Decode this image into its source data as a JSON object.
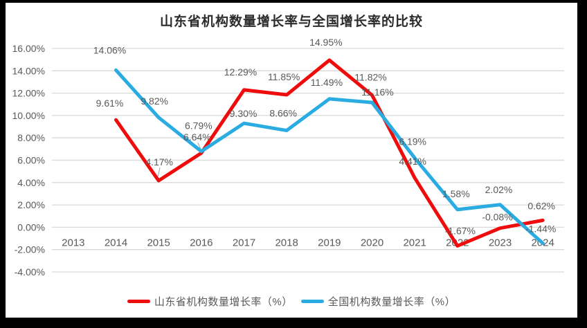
{
  "frame": {
    "background_color": "#000000",
    "panel_color": "#ffffff"
  },
  "chart_data": {
    "type": "line",
    "title": "山东省机构数量增长率与全国增长率的比较",
    "categories": [
      "2013",
      "2014",
      "2015",
      "2016",
      "2017",
      "2018",
      "2019",
      "2020",
      "2021",
      "2022",
      "2023",
      "2024"
    ],
    "series": [
      {
        "name": "山东省机构数量增长率（%）",
        "color": "#ee0c0c",
        "values": [
          null,
          9.61,
          4.17,
          6.64,
          12.29,
          11.85,
          14.95,
          11.82,
          4.41,
          -1.67,
          -0.08,
          0.62
        ],
        "labels": [
          "",
          "9.61%",
          "4.17%",
          "6.64%",
          "12.29%",
          "11.85%",
          "14.95%",
          "11.82%",
          "4.41%",
          "-1.67%",
          "-0.08%",
          "0.62%"
        ]
      },
      {
        "name": "全国机构数量增长率（%）",
        "color": "#2aace2",
        "values": [
          null,
          14.06,
          9.82,
          6.79,
          9.3,
          8.66,
          11.49,
          11.16,
          6.19,
          1.58,
          2.02,
          -1.44
        ],
        "labels": [
          "",
          "14.06%",
          "9.82%",
          "6.79%",
          "9.30%",
          "8.66%",
          "11.49%",
          "11.16%",
          "6.19%",
          "1.58%",
          "2.02%",
          "-1.44%"
        ]
      }
    ],
    "ylim": [
      -4,
      16
    ],
    "ytick_step": 2,
    "ytick_labels": [
      "16.00%",
      "14.00%",
      "12.00%",
      "10.00%",
      "8.00%",
      "6.00%",
      "4.00%",
      "2.00%",
      "0.00%",
      "-2.00%",
      "-4.00%"
    ],
    "grid": true,
    "legend_position": "bottom",
    "gridline_color": "#d9d9d9",
    "leader_line_color": "#9e9e9e",
    "axis_text_color": "#595959",
    "data_label_color": "#595959"
  }
}
